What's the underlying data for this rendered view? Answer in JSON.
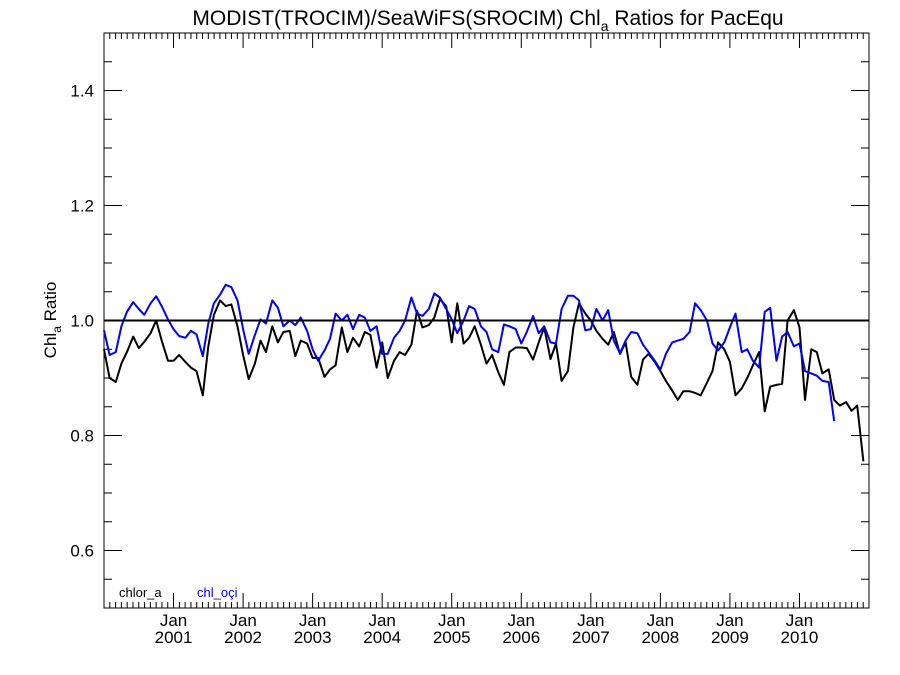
{
  "chart_data": {
    "type": "line",
    "title": {
      "prefix": "MODIST(TROCIM)/SeaWiFS(SROCIM)  Chl",
      "subscript": "a",
      "suffix": " Ratios for PacEqu"
    },
    "ylabel": {
      "prefix": "Chl",
      "subscript": "a",
      "suffix": " Ratio"
    },
    "xlim": [
      2000.0,
      2011.0
    ],
    "ylim": [
      0.5,
      1.5
    ],
    "yticks": [
      {
        "value": 0.6,
        "label": "0.6"
      },
      {
        "value": 0.8,
        "label": "0.8"
      },
      {
        "value": 1.0,
        "label": "1.0"
      },
      {
        "value": 1.2,
        "label": "1.2"
      },
      {
        "value": 1.4,
        "label": "1.4"
      }
    ],
    "xticks": [
      {
        "value": 2001.0,
        "month": "Jan",
        "year": "2001"
      },
      {
        "value": 2002.0,
        "month": "Jan",
        "year": "2002"
      },
      {
        "value": 2003.0,
        "month": "Jan",
        "year": "2003"
      },
      {
        "value": 2004.0,
        "month": "Jan",
        "year": "2004"
      },
      {
        "value": 2005.0,
        "month": "Jan",
        "year": "2005"
      },
      {
        "value": 2006.0,
        "month": "Jan",
        "year": "2006"
      },
      {
        "value": 2007.0,
        "month": "Jan",
        "year": "2007"
      },
      {
        "value": 2008.0,
        "month": "Jan",
        "year": "2008"
      },
      {
        "value": 2009.0,
        "month": "Jan",
        "year": "2009"
      },
      {
        "value": 2010.0,
        "month": "Jan",
        "year": "2010"
      }
    ],
    "reference_line": {
      "y": 1.0,
      "color": "#000000"
    },
    "legend_position": "bottom-left",
    "series": [
      {
        "name": "chlor_a",
        "color": "#000000",
        "points": [
          [
            2000.0,
            0.95
          ],
          [
            2000.08,
            0.9
          ],
          [
            2000.17,
            0.893
          ],
          [
            2000.25,
            0.925
          ],
          [
            2000.33,
            0.945
          ],
          [
            2000.42,
            0.972
          ],
          [
            2000.5,
            0.952
          ],
          [
            2000.58,
            0.963
          ],
          [
            2000.67,
            0.978
          ],
          [
            2000.75,
            1.0
          ],
          [
            2000.83,
            0.965
          ],
          [
            2000.92,
            0.93
          ],
          [
            2001.0,
            0.93
          ],
          [
            2001.08,
            0.94
          ],
          [
            2001.17,
            0.928
          ],
          [
            2001.25,
            0.918
          ],
          [
            2001.33,
            0.912
          ],
          [
            2001.42,
            0.87
          ],
          [
            2001.5,
            0.955
          ],
          [
            2001.58,
            1.01
          ],
          [
            2001.67,
            1.035
          ],
          [
            2001.75,
            1.025
          ],
          [
            2001.83,
            1.028
          ],
          [
            2001.92,
            0.99
          ],
          [
            2002.0,
            0.94
          ],
          [
            2002.08,
            0.898
          ],
          [
            2002.17,
            0.925
          ],
          [
            2002.25,
            0.965
          ],
          [
            2002.33,
            0.945
          ],
          [
            2002.42,
            0.99
          ],
          [
            2002.5,
            0.962
          ],
          [
            2002.58,
            0.98
          ],
          [
            2002.67,
            0.982
          ],
          [
            2002.75,
            0.938
          ],
          [
            2002.83,
            0.965
          ],
          [
            2002.92,
            0.96
          ],
          [
            2003.0,
            0.935
          ],
          [
            2003.08,
            0.935
          ],
          [
            2003.17,
            0.902
          ],
          [
            2003.25,
            0.915
          ],
          [
            2003.33,
            0.922
          ],
          [
            2003.42,
            0.988
          ],
          [
            2003.5,
            0.945
          ],
          [
            2003.58,
            0.97
          ],
          [
            2003.67,
            0.955
          ],
          [
            2003.75,
            0.98
          ],
          [
            2003.83,
            0.975
          ],
          [
            2003.92,
            0.918
          ],
          [
            2004.0,
            0.962
          ],
          [
            2004.08,
            0.9
          ],
          [
            2004.17,
            0.93
          ],
          [
            2004.25,
            0.945
          ],
          [
            2004.33,
            0.94
          ],
          [
            2004.42,
            0.958
          ],
          [
            2004.5,
            1.017
          ],
          [
            2004.58,
            0.988
          ],
          [
            2004.67,
            0.992
          ],
          [
            2004.75,
            1.005
          ],
          [
            2004.83,
            1.037
          ],
          [
            2004.92,
            1.025
          ],
          [
            2005.0,
            0.962
          ],
          [
            2005.08,
            1.03
          ],
          [
            2005.17,
            0.96
          ],
          [
            2005.25,
            0.97
          ],
          [
            2005.33,
            0.99
          ],
          [
            2005.42,
            0.958
          ],
          [
            2005.5,
            0.925
          ],
          [
            2005.58,
            0.94
          ],
          [
            2005.67,
            0.91
          ],
          [
            2005.75,
            0.888
          ],
          [
            2005.83,
            0.945
          ],
          [
            2005.92,
            0.953
          ],
          [
            2006.0,
            0.953
          ],
          [
            2006.08,
            0.952
          ],
          [
            2006.17,
            0.932
          ],
          [
            2006.25,
            0.962
          ],
          [
            2006.33,
            0.988
          ],
          [
            2006.42,
            0.933
          ],
          [
            2006.5,
            0.96
          ],
          [
            2006.58,
            0.895
          ],
          [
            2006.67,
            0.912
          ],
          [
            2006.75,
            0.988
          ],
          [
            2006.83,
            1.03
          ],
          [
            2006.92,
            1.012
          ],
          [
            2007.0,
            1.0
          ],
          [
            2007.08,
            0.982
          ],
          [
            2007.17,
            0.968
          ],
          [
            2007.25,
            0.958
          ],
          [
            2007.33,
            0.98
          ],
          [
            2007.42,
            0.942
          ],
          [
            2007.5,
            0.962
          ],
          [
            2007.58,
            0.902
          ],
          [
            2007.67,
            0.888
          ],
          [
            2007.75,
            0.932
          ],
          [
            2007.83,
            0.942
          ],
          [
            2007.92,
            0.928
          ],
          [
            2008.0,
            0.912
          ],
          [
            2008.08,
            0.895
          ],
          [
            2008.17,
            0.878
          ],
          [
            2008.25,
            0.862
          ],
          [
            2008.33,
            0.877
          ],
          [
            2008.42,
            0.877
          ],
          [
            2008.5,
            0.874
          ],
          [
            2008.58,
            0.87
          ],
          [
            2008.67,
            0.892
          ],
          [
            2008.75,
            0.912
          ],
          [
            2008.83,
            0.962
          ],
          [
            2008.92,
            0.95
          ],
          [
            2009.0,
            0.928
          ],
          [
            2009.08,
            0.87
          ],
          [
            2009.17,
            0.882
          ],
          [
            2009.25,
            0.9
          ],
          [
            2009.33,
            0.922
          ],
          [
            2009.42,
            0.945
          ],
          [
            2009.5,
            0.842
          ],
          [
            2009.58,
            0.885
          ],
          [
            2009.67,
            0.888
          ],
          [
            2009.75,
            0.89
          ],
          [
            2009.83,
            1.0
          ],
          [
            2009.92,
            1.018
          ],
          [
            2010.0,
            0.988
          ],
          [
            2010.08,
            0.862
          ],
          [
            2010.17,
            0.95
          ],
          [
            2010.25,
            0.945
          ],
          [
            2010.33,
            0.908
          ],
          [
            2010.42,
            0.915
          ],
          [
            2010.5,
            0.862
          ],
          [
            2010.58,
            0.852
          ],
          [
            2010.67,
            0.858
          ],
          [
            2010.75,
            0.843
          ],
          [
            2010.83,
            0.852
          ],
          [
            2010.92,
            0.755
          ]
        ]
      },
      {
        "name": "chl_oçi",
        "color": "#0000ee",
        "points": [
          [
            2000.0,
            0.983
          ],
          [
            2000.08,
            0.94
          ],
          [
            2000.17,
            0.945
          ],
          [
            2000.25,
            0.99
          ],
          [
            2000.33,
            1.015
          ],
          [
            2000.42,
            1.032
          ],
          [
            2000.5,
            1.02
          ],
          [
            2000.58,
            1.01
          ],
          [
            2000.67,
            1.03
          ],
          [
            2000.75,
            1.042
          ],
          [
            2000.83,
            1.025
          ],
          [
            2000.92,
            1.002
          ],
          [
            2001.0,
            0.985
          ],
          [
            2001.08,
            0.973
          ],
          [
            2001.17,
            0.97
          ],
          [
            2001.25,
            0.982
          ],
          [
            2001.33,
            0.976
          ],
          [
            2001.42,
            0.938
          ],
          [
            2001.5,
            0.995
          ],
          [
            2001.58,
            1.03
          ],
          [
            2001.67,
            1.045
          ],
          [
            2001.75,
            1.062
          ],
          [
            2001.83,
            1.058
          ],
          [
            2001.92,
            1.035
          ],
          [
            2002.0,
            0.985
          ],
          [
            2002.08,
            0.942
          ],
          [
            2002.17,
            0.975
          ],
          [
            2002.25,
            1.002
          ],
          [
            2002.33,
            0.995
          ],
          [
            2002.42,
            1.035
          ],
          [
            2002.5,
            1.022
          ],
          [
            2002.58,
            0.99
          ],
          [
            2002.67,
            1.0
          ],
          [
            2002.75,
            0.992
          ],
          [
            2002.83,
            1.005
          ],
          [
            2002.92,
            0.982
          ],
          [
            2003.0,
            0.95
          ],
          [
            2003.08,
            0.93
          ],
          [
            2003.17,
            0.948
          ],
          [
            2003.25,
            0.968
          ],
          [
            2003.33,
            1.012
          ],
          [
            2003.42,
            1.0
          ],
          [
            2003.5,
            1.01
          ],
          [
            2003.58,
            0.985
          ],
          [
            2003.67,
            1.01
          ],
          [
            2003.75,
            1.005
          ],
          [
            2003.83,
            0.982
          ],
          [
            2003.92,
            0.99
          ],
          [
            2004.0,
            0.942
          ],
          [
            2004.08,
            0.942
          ],
          [
            2004.17,
            0.97
          ],
          [
            2004.25,
            0.982
          ],
          [
            2004.33,
            1.0
          ],
          [
            2004.42,
            1.04
          ],
          [
            2004.5,
            1.012
          ],
          [
            2004.58,
            1.008
          ],
          [
            2004.67,
            1.02
          ],
          [
            2004.75,
            1.047
          ],
          [
            2004.83,
            1.04
          ],
          [
            2004.92,
            1.02
          ],
          [
            2005.0,
            1.002
          ],
          [
            2005.08,
            0.978
          ],
          [
            2005.17,
            1.0
          ],
          [
            2005.25,
            1.025
          ],
          [
            2005.33,
            1.02
          ],
          [
            2005.42,
            0.99
          ],
          [
            2005.5,
            0.98
          ],
          [
            2005.58,
            0.95
          ],
          [
            2005.67,
            0.945
          ],
          [
            2005.75,
            0.993
          ],
          [
            2005.83,
            0.99
          ],
          [
            2005.92,
            0.985
          ],
          [
            2006.0,
            0.96
          ],
          [
            2006.08,
            0.98
          ],
          [
            2006.17,
            1.008
          ],
          [
            2006.25,
            0.978
          ],
          [
            2006.33,
            0.99
          ],
          [
            2006.42,
            0.962
          ],
          [
            2006.5,
            0.96
          ],
          [
            2006.58,
            1.02
          ],
          [
            2006.67,
            1.043
          ],
          [
            2006.75,
            1.043
          ],
          [
            2006.83,
            1.035
          ],
          [
            2006.92,
            0.983
          ],
          [
            2007.0,
            0.985
          ],
          [
            2007.08,
            1.02
          ],
          [
            2007.17,
            1.0
          ],
          [
            2007.25,
            1.018
          ],
          [
            2007.33,
            0.965
          ],
          [
            2007.42,
            0.943
          ],
          [
            2007.5,
            0.965
          ],
          [
            2007.58,
            0.98
          ],
          [
            2007.67,
            0.978
          ],
          [
            2007.75,
            0.958
          ],
          [
            2007.83,
            0.945
          ],
          [
            2007.92,
            0.93
          ],
          [
            2008.0,
            0.915
          ],
          [
            2008.08,
            0.942
          ],
          [
            2008.17,
            0.962
          ],
          [
            2008.25,
            0.965
          ],
          [
            2008.33,
            0.968
          ],
          [
            2008.42,
            0.98
          ],
          [
            2008.5,
            1.03
          ],
          [
            2008.58,
            1.018
          ],
          [
            2008.67,
            1.0
          ],
          [
            2008.75,
            0.96
          ],
          [
            2008.83,
            0.948
          ],
          [
            2008.92,
            0.962
          ],
          [
            2009.0,
            0.988
          ],
          [
            2009.08,
            1.012
          ],
          [
            2009.17,
            0.945
          ],
          [
            2009.25,
            0.95
          ],
          [
            2009.33,
            0.93
          ],
          [
            2009.42,
            0.918
          ],
          [
            2009.5,
            1.015
          ],
          [
            2009.58,
            1.022
          ],
          [
            2009.67,
            0.93
          ],
          [
            2009.75,
            0.972
          ],
          [
            2009.83,
            0.98
          ],
          [
            2009.92,
            0.955
          ],
          [
            2010.0,
            0.96
          ],
          [
            2010.08,
            0.912
          ],
          [
            2010.17,
            0.908
          ],
          [
            2010.25,
            0.904
          ],
          [
            2010.33,
            0.895
          ],
          [
            2010.42,
            0.893
          ],
          [
            2010.5,
            0.825
          ]
        ]
      }
    ]
  }
}
